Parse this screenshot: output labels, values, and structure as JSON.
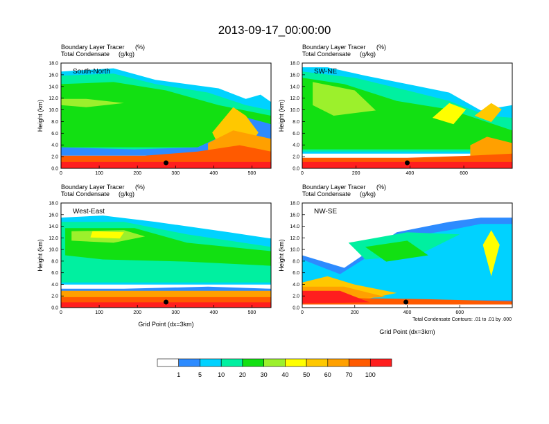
{
  "title": "2013-09-17_00:00:00",
  "chart_data": {
    "type": "heatmap",
    "panels": [
      {
        "name": "South-North",
        "subtitle1": "Boundary Layer Tracer",
        "unit1": "(%)",
        "subtitle2": "Total Condensate",
        "unit2": "(g/kg)",
        "ylabel": "Height (km)",
        "xlabel": "",
        "xlim": [
          0,
          550
        ],
        "ylim": [
          0,
          18
        ],
        "xticks": [
          0,
          100,
          200,
          300,
          400,
          500
        ],
        "yticks": [
          "0.0",
          "2.0",
          "4.0",
          "6.0",
          "8.0",
          "10.0",
          "12.0",
          "14.0",
          "16.0",
          "18.0"
        ],
        "marker_x": 275
      },
      {
        "name": "SW-NE",
        "subtitle1": "Boundary Layer Tracer",
        "unit1": "(%)",
        "subtitle2": "Total Condensate",
        "unit2": "(g/kg)",
        "ylabel": "Height (km)",
        "xlabel": "",
        "xlim": [
          0,
          780
        ],
        "ylim": [
          0,
          18
        ],
        "xticks": [
          0,
          200,
          400,
          600
        ],
        "yticks": [
          "0.0",
          "2.0",
          "4.0",
          "6.0",
          "8.0",
          "10.0",
          "12.0",
          "14.0",
          "16.0",
          "18.0"
        ],
        "marker_x": 390
      },
      {
        "name": "West-East",
        "subtitle1": "Boundary Layer Tracer",
        "unit1": "(%)",
        "subtitle2": "Total Condensate",
        "unit2": "(g/kg)",
        "ylabel": "Height (km)",
        "xlabel": "Grid Point (dx=3km)",
        "xlim": [
          0,
          550
        ],
        "ylim": [
          0,
          18
        ],
        "xticks": [
          0,
          100,
          200,
          300,
          400,
          500
        ],
        "yticks": [
          "0.0",
          "2.0",
          "4.0",
          "6.0",
          "8.0",
          "10.0",
          "12.0",
          "14.0",
          "16.0",
          "18.0"
        ],
        "marker_x": 275
      },
      {
        "name": "NW-SE",
        "subtitle1": "Boundary Layer Tracer",
        "unit1": "(%)",
        "subtitle2": "Total Condensate",
        "unit2": "(g/kg)",
        "ylabel": "Height (km)",
        "xlabel": "Grid Point (dx=3km)",
        "xlim": [
          0,
          800
        ],
        "ylim": [
          0,
          18
        ],
        "xticks": [
          0,
          200,
          400,
          600
        ],
        "yticks": [
          "0.0",
          "2.0",
          "4.0",
          "6.0",
          "8.0",
          "10.0",
          "12.0",
          "14.0",
          "16.0",
          "18.0"
        ],
        "marker_x": 395
      }
    ],
    "contour_note": "Total Condensate Contours: .01 to .01 by .000",
    "colorbar": {
      "labels": [
        "1",
        "5",
        "10",
        "20",
        "30",
        "40",
        "50",
        "60",
        "70",
        "100"
      ],
      "colors": [
        "#ffffff",
        "#2d8bff",
        "#00d2ff",
        "#00f0a0",
        "#12e012",
        "#9cf02c",
        "#ffff00",
        "#ffc800",
        "#ffa000",
        "#ff5a00",
        "#ff1e1e"
      ]
    }
  }
}
